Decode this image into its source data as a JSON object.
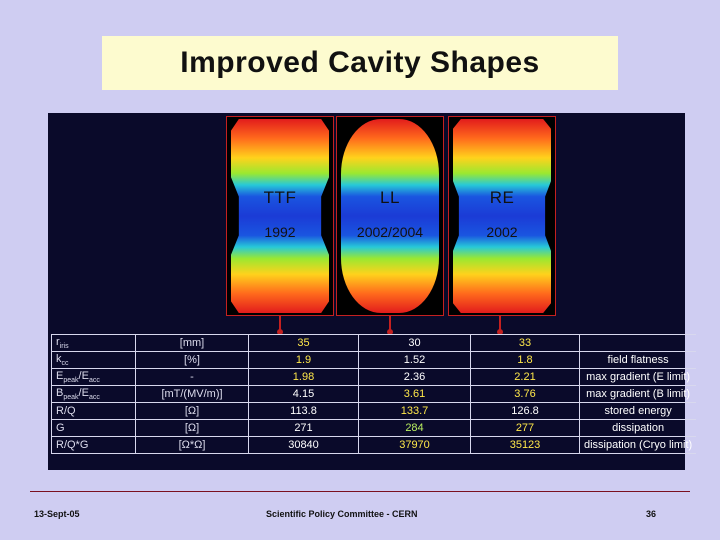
{
  "title": "Improved Cavity Shapes",
  "cavities": [
    {
      "name": "TTF",
      "year": "1992"
    },
    {
      "name": "LL",
      "year": "2002/2004"
    },
    {
      "name": "RE",
      "year": "2002"
    }
  ],
  "table": {
    "rows": [
      {
        "param": "r",
        "sub": "iris",
        "rest": "",
        "unit": "[mm]",
        "ttf": "35",
        "ll": "30",
        "re": "33",
        "note": ""
      },
      {
        "param": "k",
        "sub": "cc",
        "rest": "",
        "unit": "[%]",
        "ttf": "1.9",
        "ll": "1.52",
        "re": "1.8",
        "note": "field flatness"
      },
      {
        "param": "E",
        "sub": "peak",
        "rest": "/E",
        "sub2": "acc",
        "unit": "-",
        "ttf": "1.98",
        "ll": "2.36",
        "re": "2.21",
        "note": "max gradient (E limit)"
      },
      {
        "param": "B",
        "sub": "peak",
        "rest": "/E",
        "sub2": "acc",
        "unit": "[mT/(MV/m)]",
        "ttf": "4.15",
        "ll": "3.61",
        "re": "3.76",
        "note": "max gradient (B limit)"
      },
      {
        "param": "R/Q",
        "sub": "",
        "rest": "",
        "unit": "[Ω]",
        "ttf": "113.8",
        "ll": "133.7",
        "re": "126.8",
        "note": "stored energy"
      },
      {
        "param": "G",
        "sub": "",
        "rest": "",
        "unit": "[Ω]",
        "ttf": "271",
        "ll": "284",
        "re": "277",
        "note": "dissipation"
      },
      {
        "param": "R/Q*G",
        "sub": "",
        "rest": "",
        "unit": "[Ω*Ω]",
        "ttf": "30840",
        "ll": "37970",
        "re": "35123",
        "note": "dissipation (Cryo limit)"
      }
    ]
  },
  "footer": {
    "date": "13-Sept-05",
    "center": "Scientific Policy Committee - CERN",
    "page": "36"
  },
  "colors": {
    "background": "#cfcdf2",
    "title_box": "#fdfbcf",
    "figure_bg": "#0a0a2a",
    "accent_red": "#c42020"
  }
}
